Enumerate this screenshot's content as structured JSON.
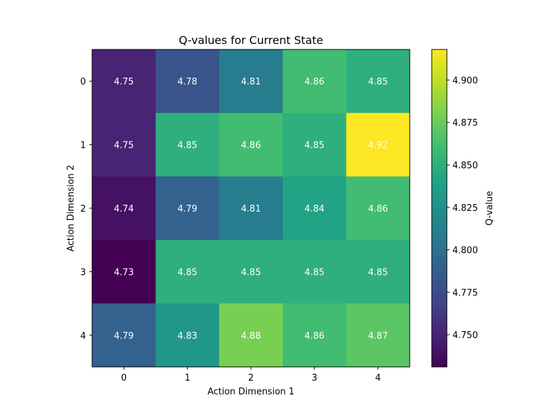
{
  "chart_data": {
    "type": "heatmap",
    "title": "Q-values for Current State",
    "xlabel": "Action Dimension 1",
    "ylabel": "Action Dimension 2",
    "x_categories": [
      "0",
      "1",
      "2",
      "3",
      "4"
    ],
    "y_categories": [
      "0",
      "1",
      "2",
      "3",
      "4"
    ],
    "values": [
      [
        4.75,
        4.78,
        4.81,
        4.86,
        4.85
      ],
      [
        4.75,
        4.85,
        4.86,
        4.85,
        4.92
      ],
      [
        4.74,
        4.79,
        4.81,
        4.84,
        4.86
      ],
      [
        4.73,
        4.85,
        4.85,
        4.85,
        4.85
      ],
      [
        4.79,
        4.83,
        4.88,
        4.86,
        4.87
      ]
    ],
    "value_labels": [
      [
        "4.75",
        "4.78",
        "4.81",
        "4.86",
        "4.85"
      ],
      [
        "4.75",
        "4.85",
        "4.86",
        "4.85",
        "4.92"
      ],
      [
        "4.74",
        "4.79",
        "4.81",
        "4.84",
        "4.86"
      ],
      [
        "4.73",
        "4.85",
        "4.85",
        "4.85",
        "4.85"
      ],
      [
        "4.79",
        "4.83",
        "4.88",
        "4.86",
        "4.87"
      ]
    ],
    "colormap": "viridis",
    "color_range": [
      4.731,
      4.918
    ],
    "colorbar": {
      "label": "Q-value",
      "ticks": [
        4.75,
        4.775,
        4.8,
        4.825,
        4.85,
        4.875,
        4.9
      ],
      "tick_labels": [
        "4.750",
        "4.775",
        "4.800",
        "4.825",
        "4.850",
        "4.875",
        "4.900"
      ]
    },
    "grid": false,
    "legend": "none"
  }
}
